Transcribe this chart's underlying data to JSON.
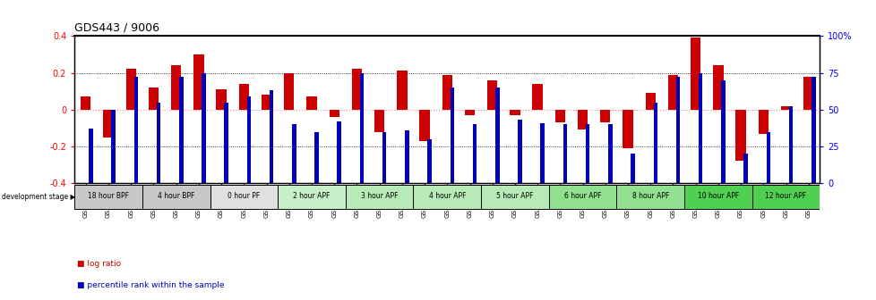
{
  "title": "GDS443 / 9006",
  "samples": [
    "GSM4585",
    "GSM4586",
    "GSM4587",
    "GSM4588",
    "GSM4589",
    "GSM4590",
    "GSM4591",
    "GSM4592",
    "GSM4593",
    "GSM4594",
    "GSM4595",
    "GSM4596",
    "GSM4597",
    "GSM4598",
    "GSM4599",
    "GSM4600",
    "GSM4601",
    "GSM4602",
    "GSM4603",
    "GSM4604",
    "GSM4605",
    "GSM4606",
    "GSM4607",
    "GSM4608",
    "GSM4609",
    "GSM4610",
    "GSM4611",
    "GSM4612",
    "GSM4613",
    "GSM4614",
    "GSM4615",
    "GSM4616",
    "GSM4617"
  ],
  "log_ratio": [
    0.07,
    -0.15,
    0.22,
    0.12,
    0.24,
    0.3,
    0.11,
    0.14,
    0.08,
    0.2,
    0.07,
    -0.04,
    0.22,
    -0.12,
    0.21,
    -0.17,
    0.19,
    -0.03,
    0.16,
    -0.03,
    0.14,
    -0.07,
    -0.11,
    -0.07,
    -0.21,
    0.09,
    0.19,
    0.39,
    0.24,
    -0.28,
    -0.13,
    0.02,
    0.18
  ],
  "percentile": [
    37,
    50,
    72,
    55,
    72,
    75,
    55,
    59,
    63,
    40,
    35,
    42,
    75,
    35,
    36,
    30,
    65,
    40,
    65,
    43,
    41,
    40,
    40,
    40,
    20,
    55,
    72,
    75,
    70,
    20,
    35,
    52,
    72
  ],
  "stages": [
    {
      "label": "18 hour BPF",
      "start": 0,
      "end": 2,
      "color": "#c8c8c8"
    },
    {
      "label": "4 hour BPF",
      "start": 3,
      "end": 5,
      "color": "#c8c8c8"
    },
    {
      "label": "0 hour PF",
      "start": 6,
      "end": 8,
      "color": "#e0e0e0"
    },
    {
      "label": "2 hour APF",
      "start": 9,
      "end": 11,
      "color": "#c8f0c8"
    },
    {
      "label": "3 hour APF",
      "start": 12,
      "end": 14,
      "color": "#b8eab8"
    },
    {
      "label": "4 hour APF",
      "start": 15,
      "end": 17,
      "color": "#b8eab8"
    },
    {
      "label": "5 hour APF",
      "start": 18,
      "end": 20,
      "color": "#b8eab8"
    },
    {
      "label": "6 hour APF",
      "start": 21,
      "end": 23,
      "color": "#90e090"
    },
    {
      "label": "8 hour APF",
      "start": 24,
      "end": 26,
      "color": "#90e090"
    },
    {
      "label": "10 hour APF",
      "start": 27,
      "end": 29,
      "color": "#50d050"
    },
    {
      "label": "12 hour APF",
      "start": 30,
      "end": 32,
      "color": "#50d050"
    }
  ],
  "ylim": [
    -0.4,
    0.4
  ],
  "dotted_lines": [
    0.2,
    -0.2
  ],
  "bar_color_red": "#cc0000",
  "bar_color_blue": "#0000bb",
  "zero_line_color": "#ff8888",
  "background_color": "#ffffff"
}
